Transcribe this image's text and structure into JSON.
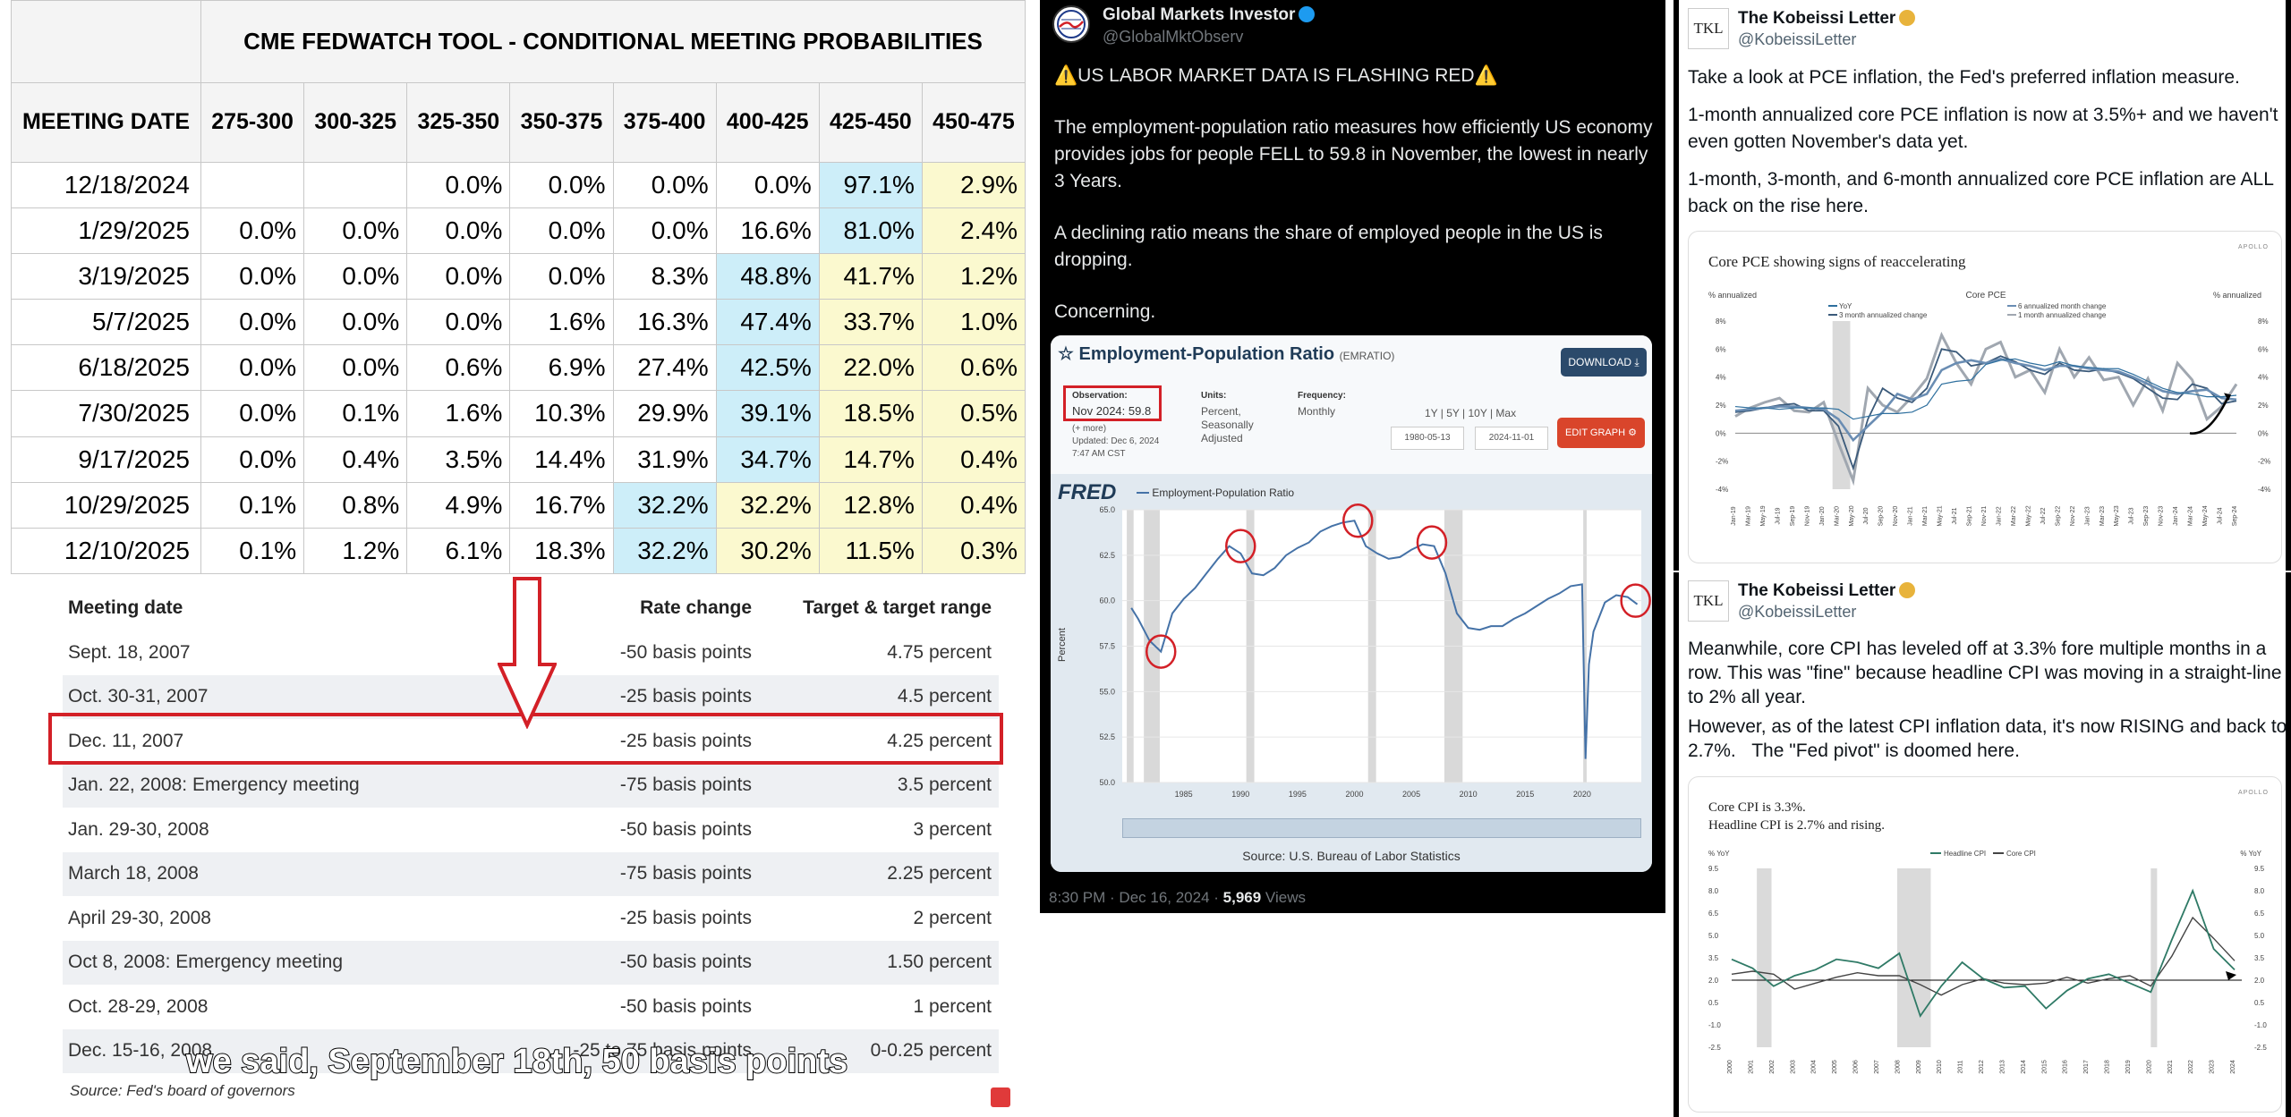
{
  "fedwatch": {
    "title": "CME FEDWATCH TOOL - CONDITIONAL MEETING PROBABILITIES",
    "date_header": "MEETING DATE",
    "columns": [
      "275-300",
      "300-325",
      "325-350",
      "350-375",
      "375-400",
      "400-425",
      "425-450",
      "450-475"
    ],
    "rows": [
      {
        "date": "12/18/2024",
        "values": [
          "",
          "",
          "0.0%",
          "0.0%",
          "0.0%",
          "0.0%",
          "97.1%",
          "2.9%"
        ],
        "blue": [
          6
        ],
        "yellow": [
          7
        ]
      },
      {
        "date": "1/29/2025",
        "values": [
          "0.0%",
          "0.0%",
          "0.0%",
          "0.0%",
          "0.0%",
          "16.6%",
          "81.0%",
          "2.4%"
        ],
        "blue": [
          6
        ],
        "yellow": [
          7
        ]
      },
      {
        "date": "3/19/2025",
        "values": [
          "0.0%",
          "0.0%",
          "0.0%",
          "0.0%",
          "8.3%",
          "48.8%",
          "41.7%",
          "1.2%"
        ],
        "blue": [
          5
        ],
        "yellow": [
          6,
          7
        ]
      },
      {
        "date": "5/7/2025",
        "values": [
          "0.0%",
          "0.0%",
          "0.0%",
          "1.6%",
          "16.3%",
          "47.4%",
          "33.7%",
          "1.0%"
        ],
        "blue": [
          5
        ],
        "yellow": [
          6,
          7
        ]
      },
      {
        "date": "6/18/2025",
        "values": [
          "0.0%",
          "0.0%",
          "0.6%",
          "6.9%",
          "27.4%",
          "42.5%",
          "22.0%",
          "0.6%"
        ],
        "blue": [
          5
        ],
        "yellow": [
          6,
          7
        ]
      },
      {
        "date": "7/30/2025",
        "values": [
          "0.0%",
          "0.1%",
          "1.6%",
          "10.3%",
          "29.9%",
          "39.1%",
          "18.5%",
          "0.5%"
        ],
        "blue": [
          5
        ],
        "yellow": [
          6,
          7
        ]
      },
      {
        "date": "9/17/2025",
        "values": [
          "0.0%",
          "0.4%",
          "3.5%",
          "14.4%",
          "31.9%",
          "34.7%",
          "14.7%",
          "0.4%"
        ],
        "blue": [
          5
        ],
        "yellow": [
          6,
          7
        ]
      },
      {
        "date": "10/29/2025",
        "values": [
          "0.1%",
          "0.8%",
          "4.9%",
          "16.7%",
          "32.2%",
          "32.2%",
          "12.8%",
          "0.4%"
        ],
        "blue": [
          4
        ],
        "yellow": [
          5,
          6,
          7
        ]
      },
      {
        "date": "12/10/2025",
        "values": [
          "0.1%",
          "1.2%",
          "6.1%",
          "18.3%",
          "32.2%",
          "30.2%",
          "11.5%",
          "0.3%"
        ],
        "blue": [
          4
        ],
        "yellow": [
          5,
          6,
          7
        ]
      }
    ]
  },
  "history": {
    "headers": [
      "Meeting date",
      "Rate change",
      "Target & target range"
    ],
    "rows": [
      [
        "Sept. 18, 2007",
        "-50 basis points",
        "4.75 percent"
      ],
      [
        "Oct. 30-31, 2007",
        "-25 basis points",
        "4.5 percent"
      ],
      [
        "Dec. 11, 2007",
        "-25 basis points",
        "4.25 percent"
      ],
      [
        "Jan. 22, 2008: Emergency meeting",
        "-75 basis points",
        "3.5 percent"
      ],
      [
        "Jan. 29-30, 2008",
        "-50 basis points",
        "3 percent"
      ],
      [
        "March 18, 2008",
        "-75 basis points",
        "2.25 percent"
      ],
      [
        "April 29-30, 2008",
        "-25 basis points",
        "2 percent"
      ],
      [
        "Oct 8, 2008: Emergency meeting",
        "-50 basis points",
        "1.50 percent"
      ],
      [
        "Oct. 28-29, 2008",
        "-50 basis points",
        "1 percent"
      ],
      [
        "Dec. 15-16, 2008",
        "-25 to 75 basis points",
        "0-0.25 percent"
      ]
    ],
    "highlight_row": 2,
    "source": "Source: Fed's board of governors",
    "subtitle": "we said, September 18th, 50 basis points"
  },
  "tweet1": {
    "name": "Global Markets Investor",
    "handle": "@GlobalMktObserv",
    "line1": "US LABOR MARKET DATA IS FLASHING RED",
    "p1": "The employment-population ratio measures how efficiently US economy provides jobs for people FELL to 59.8 in November, the lowest in nearly 3 Years.",
    "p2": "A declining ratio means the share of employed people in the US is dropping.",
    "p3": "Concerning.",
    "footer_time": "8:30 PM · Dec 16, 2024 · ",
    "footer_views": "5,969",
    "footer_views_label": " Views",
    "fred": {
      "title": "Employment-Population Ratio",
      "code": "(EMRATIO)",
      "download": "DOWNLOAD",
      "obs_label": "Observation:",
      "obs_value": "Nov 2024: 59.8",
      "obs_more": "(+ more)",
      "updated": "Updated: Dec 6, 2024",
      "updated_time": "7:47 AM CST",
      "units_label": "Units:",
      "units_value1": "Percent,",
      "units_value2": "Seasonally",
      "units_value3": "Adjusted",
      "freq_label": "Frequency:",
      "freq_value": "Monthly",
      "ranges": "1Y | 5Y | 10Y | Max",
      "date_from": "1980-05-13",
      "date_to": "2024-11-01",
      "edit": "EDIT GRAPH",
      "logo": "FRED",
      "legend": "Employment-Population Ratio",
      "ylabel": "Percent",
      "source": "Source: U.S. Bureau of Labor Statistics"
    }
  },
  "tweet2": {
    "name": "The Kobeissi Letter",
    "handle": "@KobeissiLetter",
    "avatar_text": "TKL",
    "p1": "Take a look at PCE inflation, the Fed's preferred inflation measure.",
    "p2": "1-month annualized core PCE inflation is now at 3.5%+ and we haven't even gotten November's data yet.",
    "p3": "1-month, 3-month, and 6-month annualized core PCE inflation are ALL back on the rise here."
  },
  "tweet3": {
    "name": "The Kobeissi Letter",
    "handle": "@KobeissiLetter",
    "avatar_text": "TKL",
    "p1": "Meanwhile, core CPI has leveled off at 3.3% fore multiple months in a row. This was \"fine\" because headline CPI was moving in a straight-line to 2% all year.",
    "p2a": "However, as of the latest CPI inflation data, it's now RISING and back to 2.7%.",
    "p2b": "The \"Fed pivot\" is doomed here."
  },
  "chart_data": [
    {
      "type": "line",
      "title": "Employment-Population Ratio",
      "ylabel": "Percent",
      "xlabel": "",
      "ylim": [
        50.0,
        65.0
      ],
      "x_ticks": [
        "1985",
        "1990",
        "1995",
        "2000",
        "2005",
        "2010",
        "2015",
        "2020"
      ],
      "y_ticks": [
        "65.0",
        "62.5",
        "60.0",
        "57.5",
        "55.0",
        "52.5",
        "50.0"
      ],
      "x": [
        1980.4,
        1981,
        1982,
        1983,
        1984,
        1985,
        1986,
        1987,
        1988,
        1989,
        1990,
        1991,
        1992,
        1993,
        1994,
        1995,
        1996,
        1997,
        1998,
        1999,
        2000,
        2001,
        2002,
        2003,
        2004,
        2005,
        2006,
        2007,
        2008,
        2009,
        2010,
        2011,
        2012,
        2013,
        2014,
        2015,
        2016,
        2017,
        2018,
        2019,
        2020,
        2020.3,
        2020.6,
        2021,
        2022,
        2023,
        2024,
        2024.85
      ],
      "series": [
        {
          "name": "Employment-Population Ratio",
          "values": [
            59.6,
            59.0,
            57.8,
            57.2,
            59.3,
            60.1,
            60.7,
            61.5,
            62.3,
            63.0,
            62.6,
            61.5,
            61.4,
            61.8,
            62.5,
            62.9,
            63.2,
            63.8,
            64.1,
            64.3,
            64.4,
            63.0,
            62.6,
            62.3,
            62.4,
            62.8,
            63.1,
            63.0,
            61.5,
            59.3,
            58.5,
            58.4,
            58.6,
            58.6,
            59.0,
            59.3,
            59.7,
            60.1,
            60.4,
            60.8,
            60.9,
            51.3,
            56.5,
            58.3,
            59.9,
            60.3,
            60.2,
            59.8
          ]
        }
      ],
      "recessions": [
        [
          1980.0,
          1980.6
        ],
        [
          1981.5,
          1982.9
        ],
        [
          1990.5,
          1991.2
        ],
        [
          2001.2,
          2001.9
        ],
        [
          2007.9,
          2009.5
        ],
        [
          2020.1,
          2020.4
        ]
      ]
    },
    {
      "type": "line",
      "title": "Core PCE showing signs of reaccelerating",
      "ylabel": "% annualized",
      "y_ticks": [
        "8%",
        "6%",
        "4%",
        "2%",
        "0%",
        "-2%",
        "-4%"
      ],
      "ylim": [
        -4,
        8
      ],
      "x_ticks": [
        "Jan-19",
        "Mar-19",
        "May-19",
        "Jul-19",
        "Sep-19",
        "Nov-19",
        "Jan-20",
        "Mar-20",
        "May-20",
        "Jul-20",
        "Sep-20",
        "Nov-20",
        "Jan-21",
        "Mar-21",
        "May-21",
        "Jul-21",
        "Sep-21",
        "Nov-21",
        "Jan-22",
        "Mar-22",
        "May-22",
        "Jul-22",
        "Sep-22",
        "Nov-22",
        "Jan-23",
        "Mar-23",
        "May-23",
        "Jul-23",
        "Sep-23",
        "Nov-23",
        "Jan-24",
        "Mar-24",
        "May-24",
        "Jul-24",
        "Sep-24"
      ],
      "legend_title": "Core PCE",
      "series": [
        {
          "name": "YoY",
          "values": [
            1.9,
            1.8,
            1.8,
            1.7,
            1.8,
            1.8,
            1.8,
            1.7,
            1.0,
            1.2,
            1.4,
            1.4,
            1.5,
            2.0,
            3.5,
            3.7,
            3.8,
            4.9,
            5.2,
            5.3,
            5.0,
            4.8,
            5.1,
            4.8,
            4.7,
            4.6,
            4.6,
            4.2,
            3.7,
            3.2,
            2.9,
            2.8,
            2.6,
            2.6,
            2.7
          ]
        },
        {
          "name": "3 month annualized change",
          "values": [
            1.5,
            1.6,
            1.8,
            2.0,
            2.1,
            1.6,
            1.6,
            0.5,
            -2.5,
            1.0,
            3.2,
            2.5,
            2.2,
            3.2,
            6.0,
            5.8,
            4.8,
            5.0,
            5.5,
            5.1,
            4.5,
            4.2,
            5.0,
            4.5,
            4.4,
            4.6,
            4.3,
            3.9,
            3.2,
            2.5,
            2.4,
            3.5,
            3.2,
            2.1,
            2.3
          ]
        },
        {
          "name": "6 annualized month change",
          "values": [
            1.6,
            1.7,
            1.8,
            1.9,
            1.9,
            1.8,
            1.7,
            1.0,
            -0.5,
            0.5,
            1.5,
            2.8,
            2.4,
            2.8,
            4.5,
            5.0,
            5.2,
            5.0,
            5.3,
            5.0,
            4.8,
            4.5,
            4.8,
            4.8,
            4.6,
            4.5,
            4.4,
            4.0,
            3.5,
            3.0,
            2.8,
            3.0,
            3.1,
            2.5,
            2.4
          ]
        },
        {
          "name": "1 month annualized change",
          "values": [
            1.2,
            1.8,
            2.2,
            2.5,
            1.6,
            1.5,
            2.2,
            -0.7,
            -3.4,
            3.2,
            2.0,
            1.5,
            2.6,
            3.9,
            7.0,
            5.0,
            3.5,
            6.0,
            6.5,
            4.0,
            4.5,
            2.9,
            6.0,
            4.0,
            5.4,
            3.8,
            4.0,
            2.0,
            3.9,
            1.6,
            5.0,
            3.8,
            1.0,
            1.9,
            3.5
          ]
        }
      ]
    },
    {
      "type": "line",
      "title": "Core CPI is 3.3%.",
      "subtitle": "Headline CPI is 2.7% and rising.",
      "ylabel": "% YoY",
      "y_ticks": [
        "9.5",
        "8.0",
        "6.5",
        "5.0",
        "3.5",
        "2.0",
        "0.5",
        "-1.0",
        "-2.5"
      ],
      "ylim": [
        -2.5,
        9.5
      ],
      "x": [
        "2000",
        "2001",
        "2002",
        "2003",
        "2004",
        "2005",
        "2006",
        "2007",
        "2008",
        "2009",
        "2010",
        "2011",
        "2012",
        "2013",
        "2014",
        "2015",
        "2016",
        "2017",
        "2018",
        "2019",
        "2020",
        "2021",
        "2022",
        "2023",
        "2024"
      ],
      "series": [
        {
          "name": "Headline CPI",
          "values": [
            3.4,
            2.8,
            1.6,
            2.3,
            2.7,
            3.4,
            3.2,
            2.8,
            3.8,
            -0.4,
            1.6,
            3.2,
            2.1,
            1.5,
            1.6,
            0.1,
            1.3,
            2.1,
            2.4,
            1.8,
            1.2,
            4.7,
            8.0,
            4.1,
            2.7
          ]
        },
        {
          "name": "Core CPI",
          "values": [
            2.4,
            2.6,
            2.4,
            1.4,
            1.8,
            2.2,
            2.5,
            2.3,
            2.3,
            1.7,
            1.0,
            1.7,
            2.1,
            1.8,
            1.7,
            1.8,
            2.2,
            1.8,
            2.1,
            2.3,
            1.6,
            3.6,
            6.2,
            4.8,
            3.3
          ]
        }
      ],
      "reference_line": 2.0
    }
  ]
}
